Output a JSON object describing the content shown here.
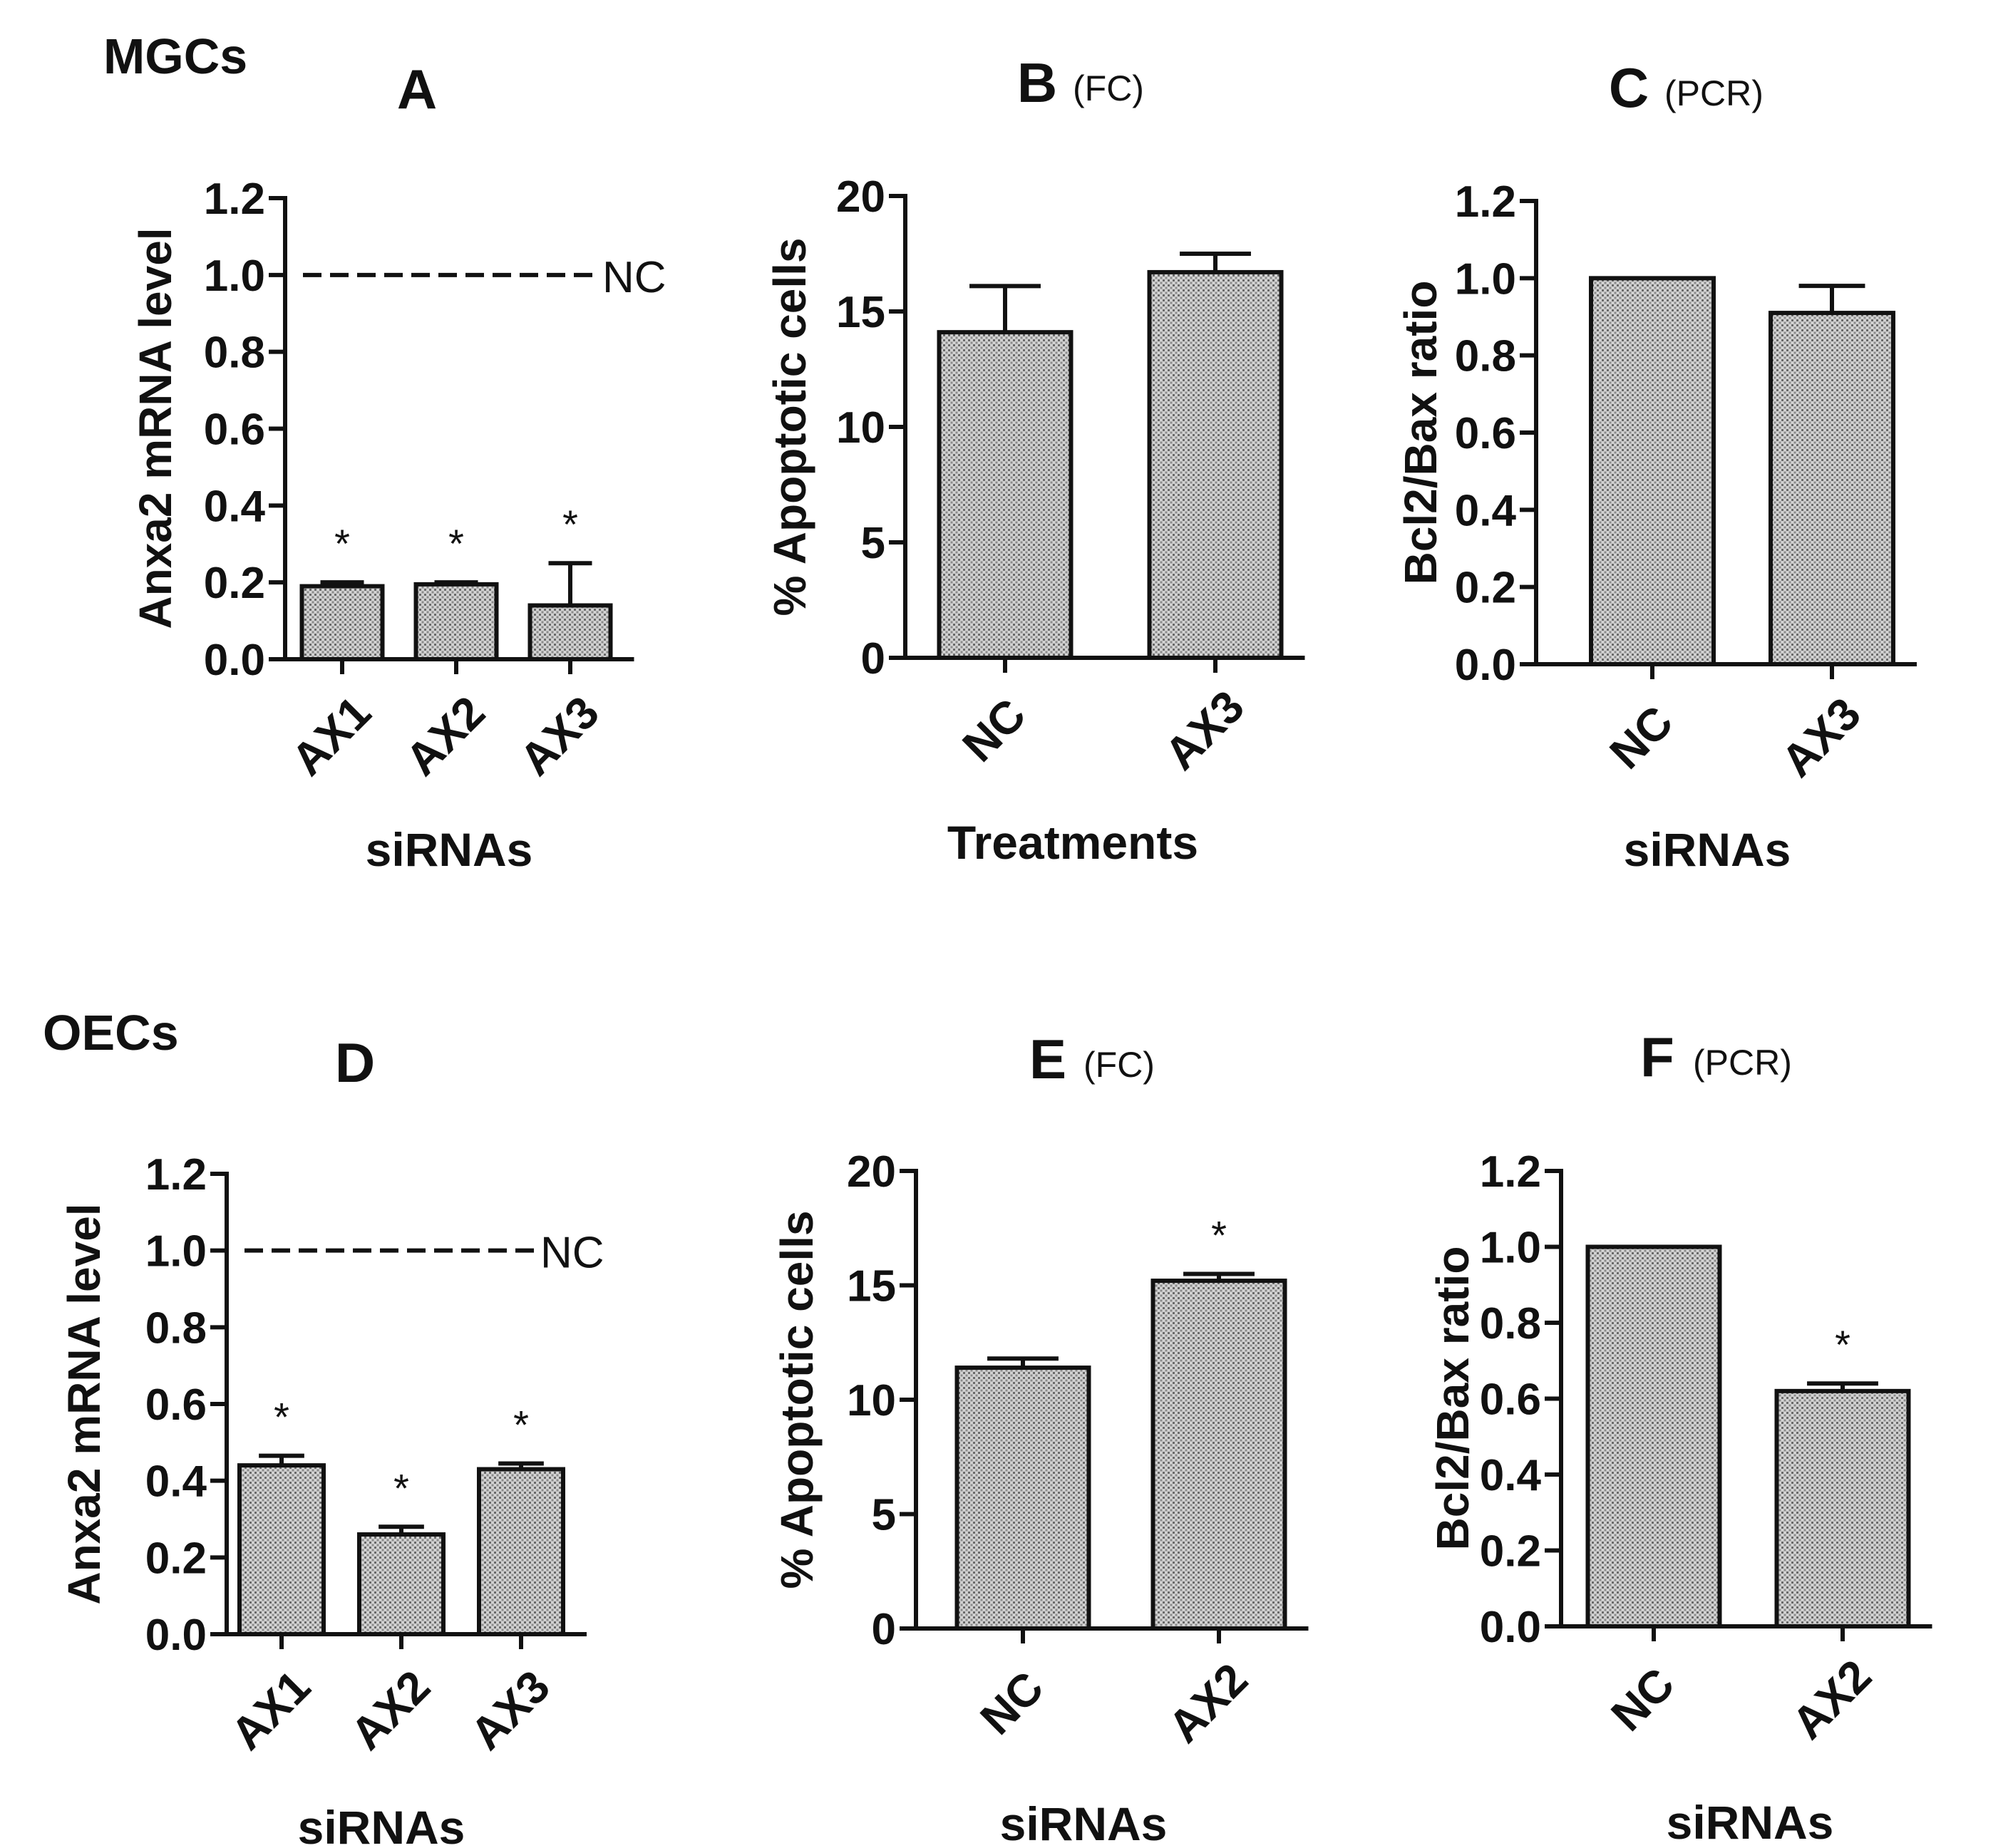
{
  "figure": {
    "group_labels": [
      "MGCs",
      "OECs"
    ]
  },
  "chart_data": [
    {
      "panel": "A",
      "panel_note": "",
      "type": "bar",
      "categories": [
        "AX1",
        "AX2",
        "AX3"
      ],
      "values": [
        0.19,
        0.195,
        0.14
      ],
      "errors": [
        0.01,
        0.005,
        0.11
      ],
      "significance": [
        "*",
        "*",
        "*"
      ],
      "reference_line": {
        "value": 1.0,
        "label": "NC"
      },
      "xlabel": "siRNAs",
      "ylabel": "Anxa2 mRNA level",
      "ylim": [
        0,
        1.2
      ],
      "yticks": [
        "0.0",
        "0.2",
        "0.4",
        "0.6",
        "0.8",
        "1.0",
        "1.2"
      ]
    },
    {
      "panel": "B",
      "panel_note": "(FC)",
      "type": "bar",
      "categories": [
        "NC",
        "AX3"
      ],
      "values": [
        14.1,
        16.7
      ],
      "errors": [
        2.0,
        0.8
      ],
      "significance": [
        "",
        ""
      ],
      "xlabel": "Treatments",
      "ylabel": "% Apoptotic cells",
      "ylim": [
        0,
        20
      ],
      "yticks": [
        "0",
        "5",
        "10",
        "15",
        "20"
      ]
    },
    {
      "panel": "C",
      "panel_note": "(PCR)",
      "type": "bar",
      "categories": [
        "NC",
        "AX3"
      ],
      "values": [
        1.0,
        0.91
      ],
      "errors": [
        0,
        0.07
      ],
      "significance": [
        "",
        ""
      ],
      "xlabel": "siRNAs",
      "ylabel": "Bcl2/Bax ratio",
      "ylim": [
        0,
        1.2
      ],
      "yticks": [
        "0.0",
        "0.2",
        "0.4",
        "0.6",
        "0.8",
        "1.0",
        "1.2"
      ]
    },
    {
      "panel": "D",
      "panel_note": "",
      "type": "bar",
      "categories": [
        "AX1",
        "AX2",
        "AX3"
      ],
      "values": [
        0.44,
        0.26,
        0.43
      ],
      "errors": [
        0.025,
        0.02,
        0.015
      ],
      "significance": [
        "*",
        "*",
        "*"
      ],
      "reference_line": {
        "value": 1.0,
        "label": "NC"
      },
      "xlabel": "siRNAs",
      "ylabel": "Anxa2 mRNA level",
      "ylim": [
        0,
        1.2
      ],
      "yticks": [
        "0.0",
        "0.2",
        "0.4",
        "0.6",
        "0.8",
        "1.0",
        "1.2"
      ]
    },
    {
      "panel": "E",
      "panel_note": "(FC)",
      "type": "bar",
      "categories": [
        "NC",
        "AX2"
      ],
      "values": [
        11.4,
        15.2
      ],
      "errors": [
        0.4,
        0.3
      ],
      "significance": [
        "",
        "*"
      ],
      "xlabel": "siRNAs",
      "ylabel": "% Apoptotic cells",
      "ylim": [
        0,
        20
      ],
      "yticks": [
        "0",
        "5",
        "10",
        "15",
        "20"
      ]
    },
    {
      "panel": "F",
      "panel_note": "(PCR)",
      "type": "bar",
      "categories": [
        "NC",
        "AX2"
      ],
      "values": [
        1.0,
        0.62
      ],
      "errors": [
        0,
        0.02
      ],
      "significance": [
        "",
        "*"
      ],
      "xlabel": "siRNAs",
      "ylabel": "Bcl2/Bax ratio",
      "ylim": [
        0,
        1.2
      ],
      "yticks": [
        "0.0",
        "0.2",
        "0.4",
        "0.6",
        "0.8",
        "1.0",
        "1.2"
      ]
    }
  ]
}
